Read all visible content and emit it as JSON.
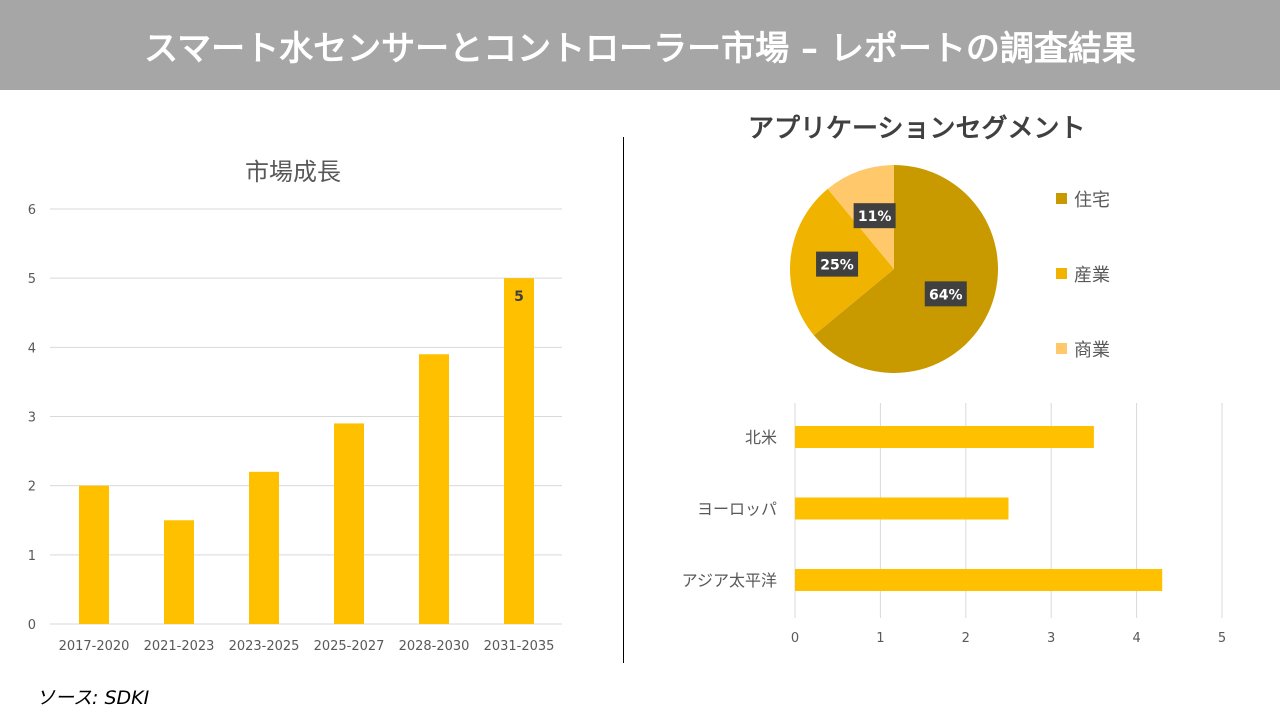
{
  "title": "スマート水センサーとコントローラー市場 – レポートの調査結果",
  "source": "ソース: SDKI",
  "chart_data": [
    {
      "type": "bar",
      "title": "市場成長",
      "categories": [
        "2017-2020",
        "2021-2023",
        "2023-2025",
        "2025-2027",
        "2028-2030",
        "2031-2035"
      ],
      "values": [
        2,
        1.5,
        2.2,
        2.9,
        3.9,
        5
      ],
      "data_labels": {
        "2031-2035": "5"
      },
      "ylim": [
        0,
        6
      ],
      "yticks": [
        "0",
        "1",
        "2",
        "3",
        "4",
        "5",
        "6"
      ],
      "grid": true,
      "color": "#ffc000"
    },
    {
      "type": "pie",
      "title": "アプリケーションセグメント",
      "slices": [
        {
          "label": "住宅",
          "value": 64,
          "text": "64%",
          "color": "#c99a00"
        },
        {
          "label": "産業",
          "value": 25,
          "text": "25%",
          "color": "#efb300"
        },
        {
          "label": "商業",
          "value": 11,
          "text": "11%",
          "color": "#ffc96b"
        }
      ],
      "legend": "right"
    },
    {
      "type": "bar",
      "orientation": "horizontal",
      "categories": [
        "北米",
        "ヨーロッパ",
        "アジア太平洋"
      ],
      "values": [
        3.5,
        2.5,
        4.3
      ],
      "xlim": [
        0,
        5
      ],
      "xticks": [
        "0",
        "1",
        "2",
        "3",
        "4",
        "5"
      ],
      "grid": true,
      "color": "#ffc000"
    }
  ]
}
